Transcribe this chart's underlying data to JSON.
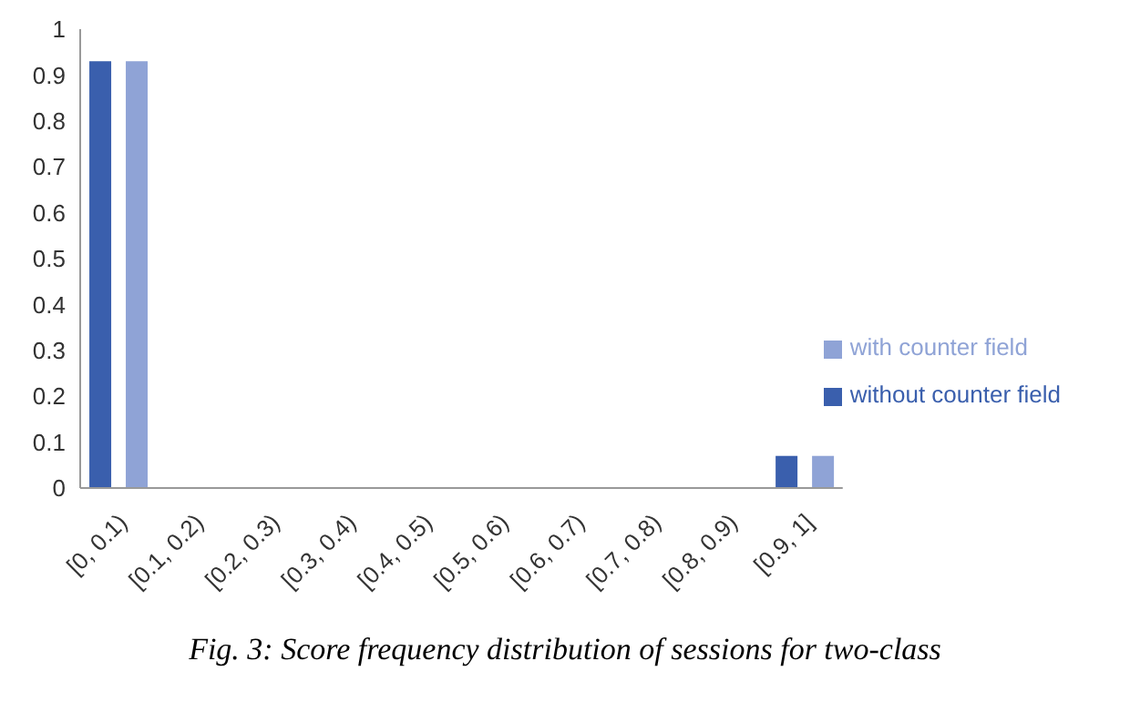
{
  "chart_data": {
    "type": "bar",
    "categories": [
      "[0, 0.1)",
      "[0.1, 0.2)",
      "[0.2, 0.3)",
      "[0.3, 0.4)",
      "[0.4, 0.5)",
      "[0.5, 0.6)",
      "[0.6, 0.7)",
      "[0.7, 0.8)",
      "[0.8, 0.9)",
      "[0.9, 1]"
    ],
    "series": [
      {
        "name": "without counter field",
        "color": "#3a5fad",
        "values": [
          0.93,
          0,
          0,
          0,
          0,
          0,
          0,
          0,
          0,
          0.07
        ]
      },
      {
        "name": "with counter field",
        "color": "#8fa3d6",
        "values": [
          0.93,
          0,
          0,
          0,
          0,
          0,
          0,
          0,
          0,
          0.07
        ]
      }
    ],
    "ylim": [
      0,
      1
    ],
    "yticks": [
      0,
      0.1,
      0.2,
      0.3,
      0.4,
      0.5,
      0.6,
      0.7,
      0.8,
      0.9,
      1
    ],
    "grid": false,
    "legend": "right",
    "annotations": [
      "Fig. 3: Score frequency distribution of sessions for two-class"
    ]
  }
}
